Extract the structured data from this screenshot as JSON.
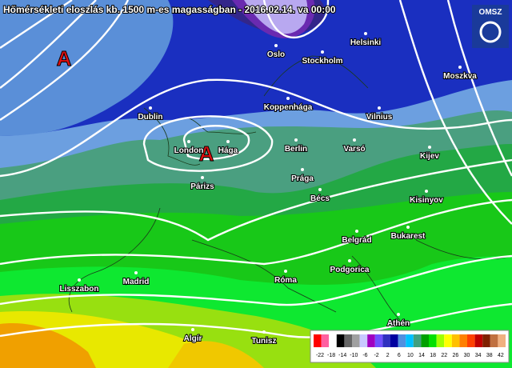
{
  "header": {
    "title": "Hőmérsékleti eloszlás kb. 1500 m-es magasságban - 2016.02.14. va 00:00",
    "logo": "OMSZ"
  },
  "pressure_centers": [
    "A",
    "A"
  ],
  "cities": [
    "Oslo",
    "Stockholm",
    "Helsinki",
    "Moszkva",
    "Koppenhága",
    "Dublin",
    "Vilnius",
    "London",
    "Hága",
    "Berlin",
    "Varsó",
    "Kijev",
    "Prága",
    "Párizs",
    "Bécs",
    "Kisinyov",
    "Belgrád",
    "Bukarest",
    "Madrid",
    "Róma",
    "Podgorica",
    "Lisszabon",
    "Athén",
    "Algír",
    "Tunisz"
  ],
  "legend": {
    "ticks": [
      -22,
      -18,
      -14,
      -10,
      -6,
      -2,
      2,
      6,
      10,
      14,
      18,
      22,
      26,
      30,
      34,
      38,
      42
    ]
  }
}
